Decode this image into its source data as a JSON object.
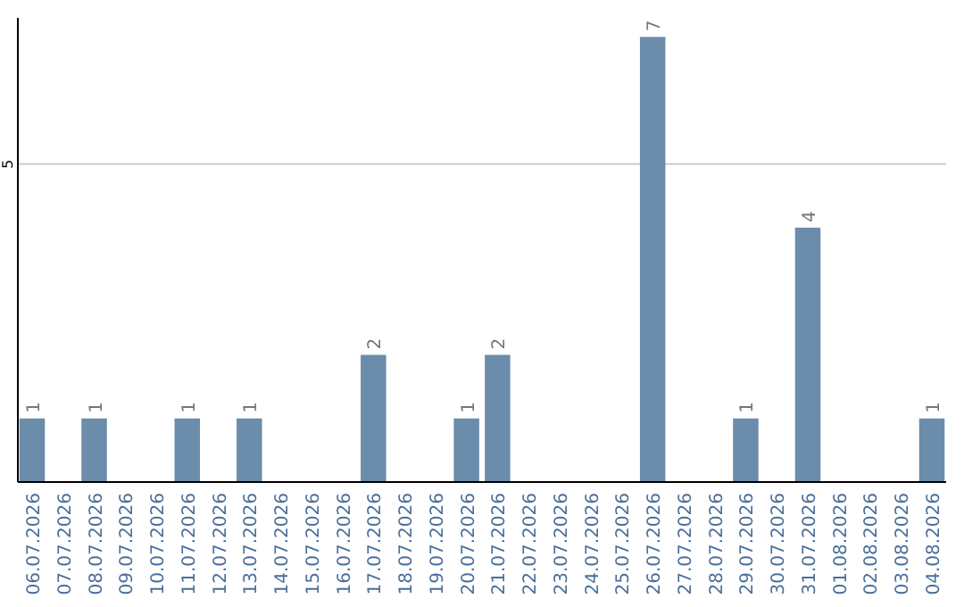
{
  "chart_data": {
    "type": "bar",
    "categories": [
      "06.07.2026",
      "07.07.2026",
      "08.07.2026",
      "09.07.2026",
      "10.07.2026",
      "11.07.2026",
      "12.07.2026",
      "13.07.2026",
      "14.07.2026",
      "15.07.2026",
      "16.07.2026",
      "17.07.2026",
      "18.07.2026",
      "19.07.2026",
      "20.07.2026",
      "21.07.2026",
      "22.07.2026",
      "23.07.2026",
      "24.07.2026",
      "25.07.2026",
      "26.07.2026",
      "27.07.2026",
      "28.07.2026",
      "29.07.2026",
      "30.07.2026",
      "31.07.2026",
      "01.08.2026",
      "02.08.2026",
      "03.08.2026",
      "04.08.2026"
    ],
    "values": [
      1,
      null,
      1,
      null,
      null,
      1,
      null,
      1,
      null,
      null,
      null,
      2,
      null,
      null,
      1,
      2,
      null,
      null,
      null,
      null,
      7,
      null,
      null,
      1,
      null,
      4,
      null,
      null,
      null,
      1
    ],
    "color": "#6b8cab",
    "ylim": [
      0,
      7.3
    ],
    "yticks": [
      5
    ],
    "grid": "y",
    "data_labels": true
  }
}
